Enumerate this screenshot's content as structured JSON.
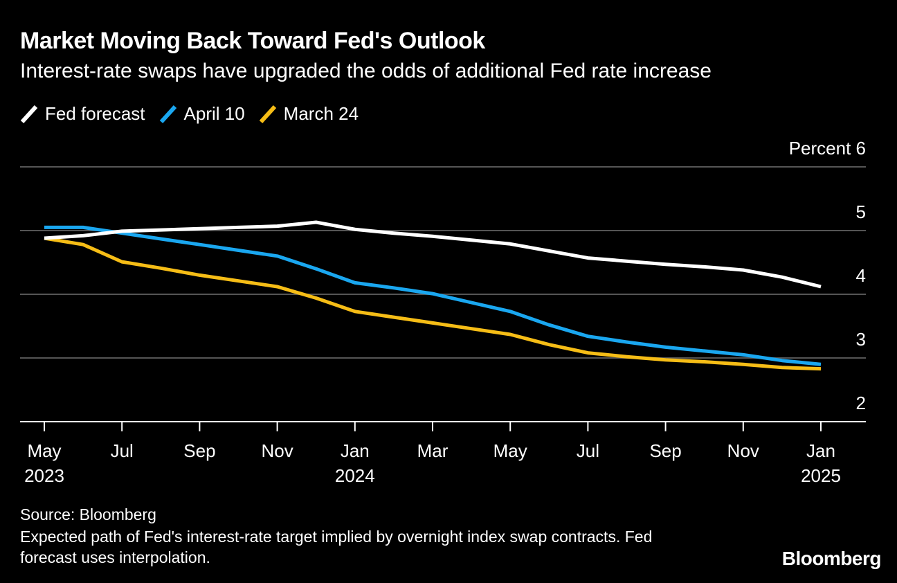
{
  "header": {
    "title": "Market Moving Back Toward Fed's Outlook",
    "subtitle": "Interest-rate swaps have upgraded the odds of additional Fed rate increase"
  },
  "footer": {
    "source": "Source: Bloomberg",
    "note": "Expected path of Fed's interest-rate target implied by overnight index swap contracts. Fed forecast uses interpolation.",
    "brand": "Bloomberg"
  },
  "colors": {
    "background": "#000000",
    "grid": "#555555",
    "fed_forecast": "#ffffff",
    "april_10": "#1aa7f0",
    "march_24": "#f6bd16"
  },
  "chart_data": {
    "type": "line",
    "ylabel": "Percent",
    "ylim": [
      2,
      6
    ],
    "yticks": [
      2,
      3,
      4,
      5,
      6
    ],
    "xlim": [
      "2023-05",
      "2025-01"
    ],
    "x_ticks": [
      {
        "date": "2023-05",
        "label": "May",
        "year": "2023"
      },
      {
        "date": "2023-07",
        "label": "Jul",
        "year": ""
      },
      {
        "date": "2023-09",
        "label": "Sep",
        "year": ""
      },
      {
        "date": "2023-11",
        "label": "Nov",
        "year": ""
      },
      {
        "date": "2024-01",
        "label": "Jan",
        "year": "2024"
      },
      {
        "date": "2024-03",
        "label": "Mar",
        "year": ""
      },
      {
        "date": "2024-05",
        "label": "May",
        "year": ""
      },
      {
        "date": "2024-07",
        "label": "Jul",
        "year": ""
      },
      {
        "date": "2024-09",
        "label": "Sep",
        "year": ""
      },
      {
        "date": "2024-11",
        "label": "Nov",
        "year": ""
      },
      {
        "date": "2025-01",
        "label": "Jan",
        "year": "2025"
      }
    ],
    "grid": true,
    "legend_position": "top-left",
    "series": [
      {
        "name": "Fed forecast",
        "color": "#ffffff",
        "points": [
          [
            "2023-05",
            4.88
          ],
          [
            "2023-06",
            4.92
          ],
          [
            "2023-07",
            4.99
          ],
          [
            "2023-08",
            5.01
          ],
          [
            "2023-09",
            5.03
          ],
          [
            "2023-10",
            5.05
          ],
          [
            "2023-11",
            5.07
          ],
          [
            "2023-12",
            5.13
          ],
          [
            "2024-01",
            5.02
          ],
          [
            "2024-02",
            4.96
          ],
          [
            "2024-03",
            4.91
          ],
          [
            "2024-04",
            4.85
          ],
          [
            "2024-05",
            4.79
          ],
          [
            "2024-06",
            4.68
          ],
          [
            "2024-07",
            4.57
          ],
          [
            "2024-08",
            4.52
          ],
          [
            "2024-09",
            4.47
          ],
          [
            "2024-10",
            4.43
          ],
          [
            "2024-11",
            4.38
          ],
          [
            "2024-12",
            4.27
          ],
          [
            "2025-01",
            4.12
          ]
        ]
      },
      {
        "name": "April 10",
        "color": "#1aa7f0",
        "points": [
          [
            "2023-05",
            5.05
          ],
          [
            "2023-06",
            5.05
          ],
          [
            "2023-07",
            4.96
          ],
          [
            "2023-08",
            4.87
          ],
          [
            "2023-09",
            4.78
          ],
          [
            "2023-10",
            4.69
          ],
          [
            "2023-11",
            4.6
          ],
          [
            "2023-12",
            4.4
          ],
          [
            "2024-01",
            4.18
          ],
          [
            "2024-02",
            4.1
          ],
          [
            "2024-03",
            4.01
          ],
          [
            "2024-04",
            3.87
          ],
          [
            "2024-05",
            3.73
          ],
          [
            "2024-06",
            3.52
          ],
          [
            "2024-07",
            3.34
          ],
          [
            "2024-08",
            3.25
          ],
          [
            "2024-09",
            3.17
          ],
          [
            "2024-10",
            3.11
          ],
          [
            "2024-11",
            3.05
          ],
          [
            "2024-12",
            2.96
          ],
          [
            "2025-01",
            2.9
          ]
        ]
      },
      {
        "name": "March 24",
        "color": "#f6bd16",
        "points": [
          [
            "2023-05",
            4.88
          ],
          [
            "2023-06",
            4.78
          ],
          [
            "2023-07",
            4.51
          ],
          [
            "2023-08",
            4.41
          ],
          [
            "2023-09",
            4.3
          ],
          [
            "2023-10",
            4.21
          ],
          [
            "2023-11",
            4.12
          ],
          [
            "2023-12",
            3.94
          ],
          [
            "2024-01",
            3.73
          ],
          [
            "2024-02",
            3.64
          ],
          [
            "2024-03",
            3.55
          ],
          [
            "2024-04",
            3.46
          ],
          [
            "2024-05",
            3.37
          ],
          [
            "2024-06",
            3.21
          ],
          [
            "2024-07",
            3.08
          ],
          [
            "2024-08",
            3.02
          ],
          [
            "2024-09",
            2.97
          ],
          [
            "2024-10",
            2.94
          ],
          [
            "2024-11",
            2.9
          ],
          [
            "2024-12",
            2.85
          ],
          [
            "2025-01",
            2.83
          ]
        ]
      }
    ]
  }
}
